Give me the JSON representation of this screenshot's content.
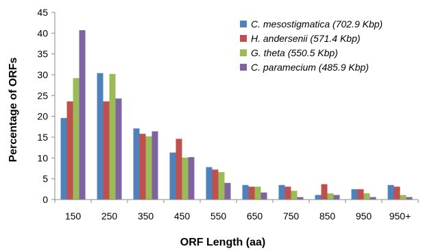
{
  "chart_data": {
    "type": "bar",
    "xlabel": "ORF Length (aa)",
    "ylabel": "Percentage of ORFs",
    "ylim": [
      0,
      45
    ],
    "ytick_step": 5,
    "legend_position": "top-right",
    "categories": [
      "150",
      "250",
      "350",
      "450",
      "550",
      "650",
      "750",
      "850",
      "950",
      "950+"
    ],
    "series": [
      {
        "name": "C. mesostigmatica (702.9 Kbp)",
        "color": "#4f81bd",
        "values": [
          19.6,
          30.4,
          17.1,
          11.3,
          7.8,
          3.5,
          3.5,
          1.1,
          2.5,
          3.5
        ]
      },
      {
        "name": "H. andersenii (571.4 Kbp)",
        "color": "#c0504d",
        "values": [
          23.6,
          23.6,
          15.8,
          14.6,
          7.2,
          3.1,
          3.1,
          3.7,
          2.5,
          3.1
        ]
      },
      {
        "name": "G. theta (550.5 Kbp)",
        "color": "#9bbb59",
        "values": [
          29.2,
          30.2,
          15.2,
          10.1,
          6.6,
          3.1,
          2.1,
          1.5,
          1.5,
          1.1
        ]
      },
      {
        "name": "C. paramecium (485.9 Kbp)",
        "color": "#8064a2",
        "values": [
          40.7,
          24.3,
          16.4,
          10.2,
          4.0,
          1.7,
          0.6,
          1.1,
          0.6,
          0.6
        ]
      }
    ]
  }
}
